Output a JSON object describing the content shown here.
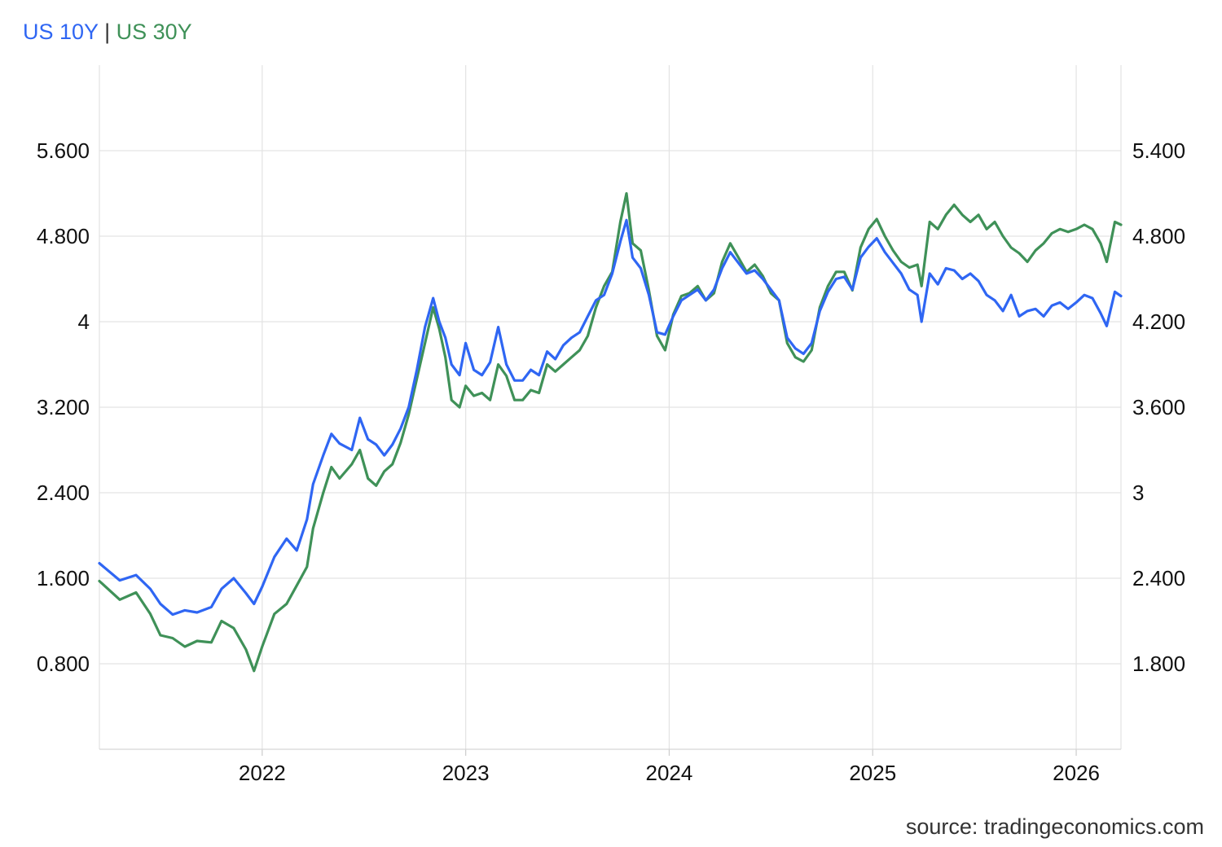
{
  "legend": {
    "s1": "US 10Y",
    "sep": "|",
    "s2": "US 30Y",
    "c1": "#2f66f3",
    "c2": "#3f9158"
  },
  "source": "source: tradingeconomics.com",
  "chart_data": {
    "type": "line",
    "title": "",
    "x_range": [
      2021.2,
      2026.22
    ],
    "x_ticks": [
      {
        "v": 2022,
        "label": "2022"
      },
      {
        "v": 2023,
        "label": "2023"
      },
      {
        "v": 2024,
        "label": "2024"
      },
      {
        "v": 2025,
        "label": "2025"
      },
      {
        "v": 2026,
        "label": "2026"
      }
    ],
    "left_axis": {
      "range": [
        0.0,
        6.4
      ],
      "ticks": [
        {
          "v": 0.8,
          "label": "0.800"
        },
        {
          "v": 1.6,
          "label": "1.600"
        },
        {
          "v": 2.4,
          "label": "2.400"
        },
        {
          "v": 3.2,
          "label": "3.200"
        },
        {
          "v": 4.0,
          "label": "4"
        },
        {
          "v": 4.8,
          "label": "4.800"
        },
        {
          "v": 5.6,
          "label": "5.600"
        }
      ]
    },
    "right_axis": {
      "range": [
        1.2,
        6.0
      ],
      "ticks": [
        {
          "v": 1.8,
          "label": "1.800"
        },
        {
          "v": 2.4,
          "label": "2.400"
        },
        {
          "v": 3.0,
          "label": "3"
        },
        {
          "v": 3.6,
          "label": "3.600"
        },
        {
          "v": 4.2,
          "label": "4.200"
        },
        {
          "v": 4.8,
          "label": "4.800"
        },
        {
          "v": 5.4,
          "label": "5.400"
        }
      ]
    },
    "series": [
      {
        "name": "US 10Y",
        "axis": "left",
        "color": "#2f66f3",
        "points": [
          [
            2021.2,
            1.74
          ],
          [
            2021.3,
            1.58
          ],
          [
            2021.38,
            1.63
          ],
          [
            2021.45,
            1.5
          ],
          [
            2021.5,
            1.36
          ],
          [
            2021.56,
            1.26
          ],
          [
            2021.62,
            1.3
          ],
          [
            2021.68,
            1.28
          ],
          [
            2021.75,
            1.33
          ],
          [
            2021.8,
            1.5
          ],
          [
            2021.86,
            1.6
          ],
          [
            2021.92,
            1.46
          ],
          [
            2021.96,
            1.36
          ],
          [
            2022.0,
            1.52
          ],
          [
            2022.06,
            1.8
          ],
          [
            2022.12,
            1.97
          ],
          [
            2022.17,
            1.86
          ],
          [
            2022.22,
            2.15
          ],
          [
            2022.25,
            2.48
          ],
          [
            2022.3,
            2.75
          ],
          [
            2022.34,
            2.95
          ],
          [
            2022.38,
            2.86
          ],
          [
            2022.44,
            2.8
          ],
          [
            2022.48,
            3.1
          ],
          [
            2022.52,
            2.9
          ],
          [
            2022.56,
            2.85
          ],
          [
            2022.6,
            2.75
          ],
          [
            2022.64,
            2.85
          ],
          [
            2022.68,
            3.0
          ],
          [
            2022.72,
            3.2
          ],
          [
            2022.76,
            3.55
          ],
          [
            2022.8,
            3.95
          ],
          [
            2022.84,
            4.22
          ],
          [
            2022.87,
            4.0
          ],
          [
            2022.9,
            3.85
          ],
          [
            2022.93,
            3.6
          ],
          [
            2022.97,
            3.5
          ],
          [
            2023.0,
            3.8
          ],
          [
            2023.04,
            3.55
          ],
          [
            2023.08,
            3.5
          ],
          [
            2023.12,
            3.62
          ],
          [
            2023.16,
            3.95
          ],
          [
            2023.2,
            3.6
          ],
          [
            2023.24,
            3.45
          ],
          [
            2023.28,
            3.45
          ],
          [
            2023.32,
            3.55
          ],
          [
            2023.36,
            3.5
          ],
          [
            2023.4,
            3.72
          ],
          [
            2023.44,
            3.65
          ],
          [
            2023.48,
            3.78
          ],
          [
            2023.52,
            3.85
          ],
          [
            2023.56,
            3.9
          ],
          [
            2023.6,
            4.05
          ],
          [
            2023.64,
            4.2
          ],
          [
            2023.68,
            4.25
          ],
          [
            2023.72,
            4.45
          ],
          [
            2023.76,
            4.75
          ],
          [
            2023.79,
            4.95
          ],
          [
            2023.82,
            4.6
          ],
          [
            2023.86,
            4.5
          ],
          [
            2023.9,
            4.25
          ],
          [
            2023.94,
            3.9
          ],
          [
            2023.98,
            3.88
          ],
          [
            2024.02,
            4.05
          ],
          [
            2024.06,
            4.2
          ],
          [
            2024.1,
            4.25
          ],
          [
            2024.14,
            4.3
          ],
          [
            2024.18,
            4.2
          ],
          [
            2024.22,
            4.3
          ],
          [
            2024.26,
            4.5
          ],
          [
            2024.3,
            4.65
          ],
          [
            2024.34,
            4.55
          ],
          [
            2024.38,
            4.45
          ],
          [
            2024.42,
            4.48
          ],
          [
            2024.46,
            4.4
          ],
          [
            2024.5,
            4.3
          ],
          [
            2024.54,
            4.2
          ],
          [
            2024.58,
            3.85
          ],
          [
            2024.62,
            3.75
          ],
          [
            2024.66,
            3.7
          ],
          [
            2024.7,
            3.8
          ],
          [
            2024.74,
            4.1
          ],
          [
            2024.78,
            4.28
          ],
          [
            2024.82,
            4.4
          ],
          [
            2024.86,
            4.42
          ],
          [
            2024.9,
            4.3
          ],
          [
            2024.94,
            4.6
          ],
          [
            2024.98,
            4.7
          ],
          [
            2025.02,
            4.78
          ],
          [
            2025.06,
            4.65
          ],
          [
            2025.1,
            4.55
          ],
          [
            2025.14,
            4.45
          ],
          [
            2025.18,
            4.3
          ],
          [
            2025.22,
            4.25
          ],
          [
            2025.24,
            4.0
          ],
          [
            2025.28,
            4.45
          ],
          [
            2025.32,
            4.35
          ],
          [
            2025.36,
            4.5
          ],
          [
            2025.4,
            4.48
          ],
          [
            2025.44,
            4.4
          ],
          [
            2025.48,
            4.45
          ],
          [
            2025.52,
            4.38
          ],
          [
            2025.56,
            4.25
          ],
          [
            2025.6,
            4.2
          ],
          [
            2025.64,
            4.1
          ],
          [
            2025.68,
            4.25
          ],
          [
            2025.72,
            4.05
          ],
          [
            2025.76,
            4.1
          ],
          [
            2025.8,
            4.12
          ],
          [
            2025.84,
            4.05
          ],
          [
            2025.88,
            4.15
          ],
          [
            2025.92,
            4.18
          ],
          [
            2025.96,
            4.12
          ],
          [
            2026.0,
            4.18
          ],
          [
            2026.04,
            4.25
          ],
          [
            2026.08,
            4.22
          ],
          [
            2026.12,
            4.08
          ],
          [
            2026.15,
            3.96
          ],
          [
            2026.19,
            4.28
          ],
          [
            2026.22,
            4.24
          ]
        ]
      },
      {
        "name": "US 30Y",
        "axis": "right",
        "color": "#3f9158",
        "points": [
          [
            2021.2,
            2.38
          ],
          [
            2021.3,
            2.25
          ],
          [
            2021.38,
            2.3
          ],
          [
            2021.45,
            2.15
          ],
          [
            2021.5,
            2.0
          ],
          [
            2021.56,
            1.98
          ],
          [
            2021.62,
            1.92
          ],
          [
            2021.68,
            1.96
          ],
          [
            2021.75,
            1.95
          ],
          [
            2021.8,
            2.1
          ],
          [
            2021.86,
            2.05
          ],
          [
            2021.92,
            1.9
          ],
          [
            2021.96,
            1.75
          ],
          [
            2022.0,
            1.92
          ],
          [
            2022.06,
            2.15
          ],
          [
            2022.12,
            2.22
          ],
          [
            2022.17,
            2.35
          ],
          [
            2022.22,
            2.48
          ],
          [
            2022.25,
            2.75
          ],
          [
            2022.3,
            3.0
          ],
          [
            2022.34,
            3.18
          ],
          [
            2022.38,
            3.1
          ],
          [
            2022.44,
            3.2
          ],
          [
            2022.48,
            3.3
          ],
          [
            2022.52,
            3.1
          ],
          [
            2022.56,
            3.05
          ],
          [
            2022.6,
            3.15
          ],
          [
            2022.64,
            3.2
          ],
          [
            2022.68,
            3.35
          ],
          [
            2022.72,
            3.55
          ],
          [
            2022.76,
            3.8
          ],
          [
            2022.8,
            4.05
          ],
          [
            2022.84,
            4.3
          ],
          [
            2022.87,
            4.15
          ],
          [
            2022.9,
            3.95
          ],
          [
            2022.93,
            3.65
          ],
          [
            2022.97,
            3.6
          ],
          [
            2023.0,
            3.75
          ],
          [
            2023.04,
            3.68
          ],
          [
            2023.08,
            3.7
          ],
          [
            2023.12,
            3.65
          ],
          [
            2023.16,
            3.9
          ],
          [
            2023.2,
            3.82
          ],
          [
            2023.24,
            3.65
          ],
          [
            2023.28,
            3.65
          ],
          [
            2023.32,
            3.72
          ],
          [
            2023.36,
            3.7
          ],
          [
            2023.4,
            3.9
          ],
          [
            2023.44,
            3.85
          ],
          [
            2023.48,
            3.9
          ],
          [
            2023.52,
            3.95
          ],
          [
            2023.56,
            4.0
          ],
          [
            2023.6,
            4.1
          ],
          [
            2023.64,
            4.3
          ],
          [
            2023.68,
            4.45
          ],
          [
            2023.72,
            4.55
          ],
          [
            2023.76,
            4.9
          ],
          [
            2023.79,
            5.1
          ],
          [
            2023.82,
            4.75
          ],
          [
            2023.86,
            4.7
          ],
          [
            2023.9,
            4.42
          ],
          [
            2023.94,
            4.1
          ],
          [
            2023.98,
            4.0
          ],
          [
            2024.02,
            4.25
          ],
          [
            2024.06,
            4.38
          ],
          [
            2024.1,
            4.4
          ],
          [
            2024.14,
            4.45
          ],
          [
            2024.18,
            4.35
          ],
          [
            2024.22,
            4.4
          ],
          [
            2024.26,
            4.62
          ],
          [
            2024.3,
            4.75
          ],
          [
            2024.34,
            4.65
          ],
          [
            2024.38,
            4.55
          ],
          [
            2024.42,
            4.6
          ],
          [
            2024.46,
            4.52
          ],
          [
            2024.5,
            4.4
          ],
          [
            2024.54,
            4.35
          ],
          [
            2024.58,
            4.05
          ],
          [
            2024.62,
            3.95
          ],
          [
            2024.66,
            3.92
          ],
          [
            2024.7,
            4.0
          ],
          [
            2024.74,
            4.3
          ],
          [
            2024.78,
            4.45
          ],
          [
            2024.82,
            4.55
          ],
          [
            2024.86,
            4.55
          ],
          [
            2024.9,
            4.42
          ],
          [
            2024.94,
            4.72
          ],
          [
            2024.98,
            4.85
          ],
          [
            2025.02,
            4.92
          ],
          [
            2025.06,
            4.8
          ],
          [
            2025.1,
            4.7
          ],
          [
            2025.14,
            4.62
          ],
          [
            2025.18,
            4.58
          ],
          [
            2025.22,
            4.6
          ],
          [
            2025.24,
            4.45
          ],
          [
            2025.28,
            4.9
          ],
          [
            2025.32,
            4.85
          ],
          [
            2025.36,
            4.95
          ],
          [
            2025.4,
            5.02
          ],
          [
            2025.44,
            4.95
          ],
          [
            2025.48,
            4.9
          ],
          [
            2025.52,
            4.95
          ],
          [
            2025.56,
            4.85
          ],
          [
            2025.6,
            4.9
          ],
          [
            2025.64,
            4.8
          ],
          [
            2025.68,
            4.72
          ],
          [
            2025.72,
            4.68
          ],
          [
            2025.76,
            4.62
          ],
          [
            2025.8,
            4.7
          ],
          [
            2025.84,
            4.75
          ],
          [
            2025.88,
            4.82
          ],
          [
            2025.92,
            4.85
          ],
          [
            2025.96,
            4.83
          ],
          [
            2026.0,
            4.85
          ],
          [
            2026.04,
            4.88
          ],
          [
            2026.08,
            4.85
          ],
          [
            2026.12,
            4.75
          ],
          [
            2026.15,
            4.62
          ],
          [
            2026.19,
            4.9
          ],
          [
            2026.22,
            4.88
          ]
        ]
      }
    ]
  }
}
